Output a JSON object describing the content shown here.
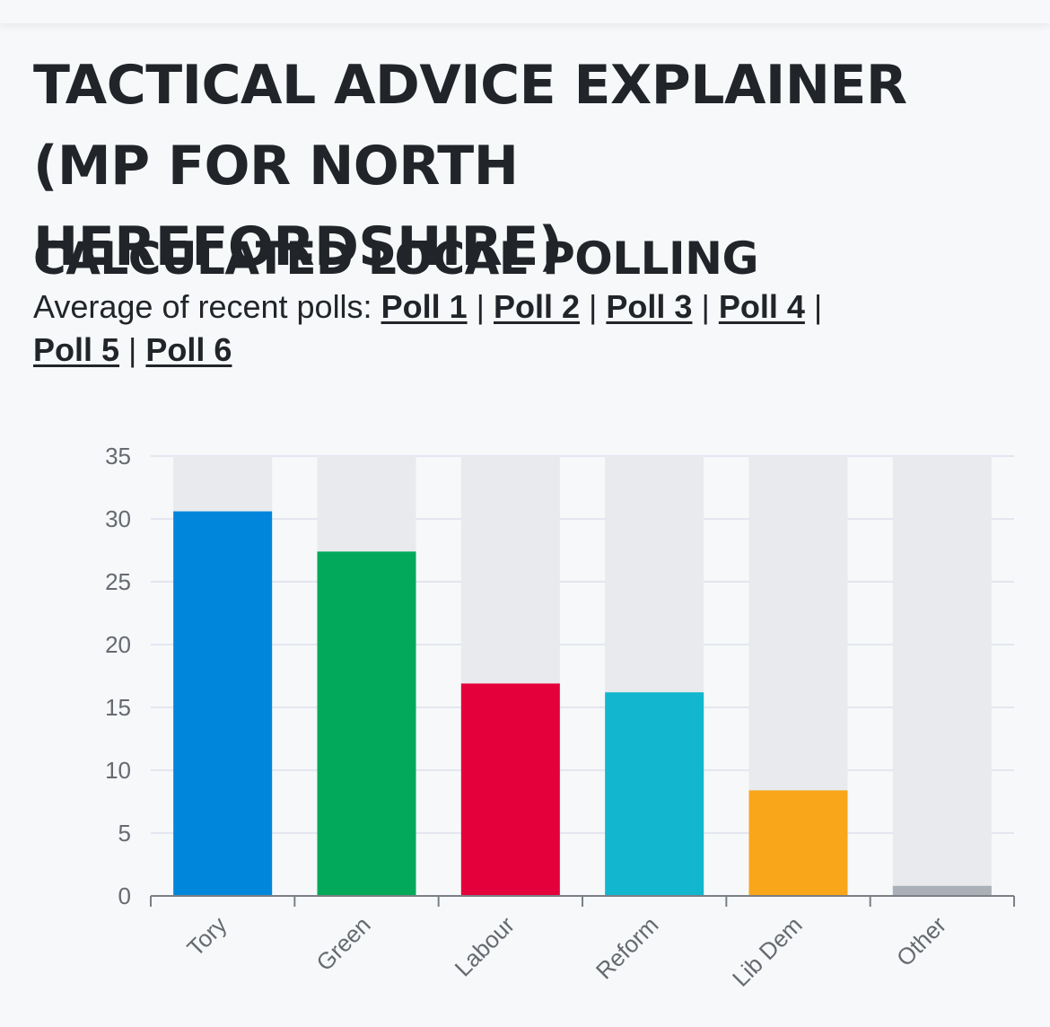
{
  "header": {
    "title_line1": "TACTICAL ADVICE EXPLAINER",
    "title_line2": "(MP FOR NORTH HEREFORDSHIRE)"
  },
  "section": {
    "title": "CALCULATED LOCAL POLLING",
    "intro": "Average of recent polls: ",
    "polls": [
      "Poll 1",
      "Poll 2",
      "Poll 3",
      "Poll 4",
      "Poll 5",
      "Poll 6"
    ],
    "separator": "|"
  },
  "chart_data": {
    "type": "bar",
    "title": "",
    "xlabel": "",
    "ylabel": "",
    "categories": [
      "Tory",
      "Green",
      "Labour",
      "Reform",
      "Lib Dem",
      "Other"
    ],
    "values": [
      30.6,
      27.4,
      16.9,
      16.2,
      8.4,
      0.8
    ],
    "colors": [
      "#0087dc",
      "#02a95b",
      "#e4003b",
      "#12b6cf",
      "#faa61a",
      "#aab0b7"
    ],
    "track_color": "#e8eaed",
    "ylim": [
      0,
      35
    ],
    "yticks": [
      0,
      5,
      10,
      15,
      20,
      25,
      30,
      35
    ],
    "grid": true,
    "legend": "none"
  }
}
